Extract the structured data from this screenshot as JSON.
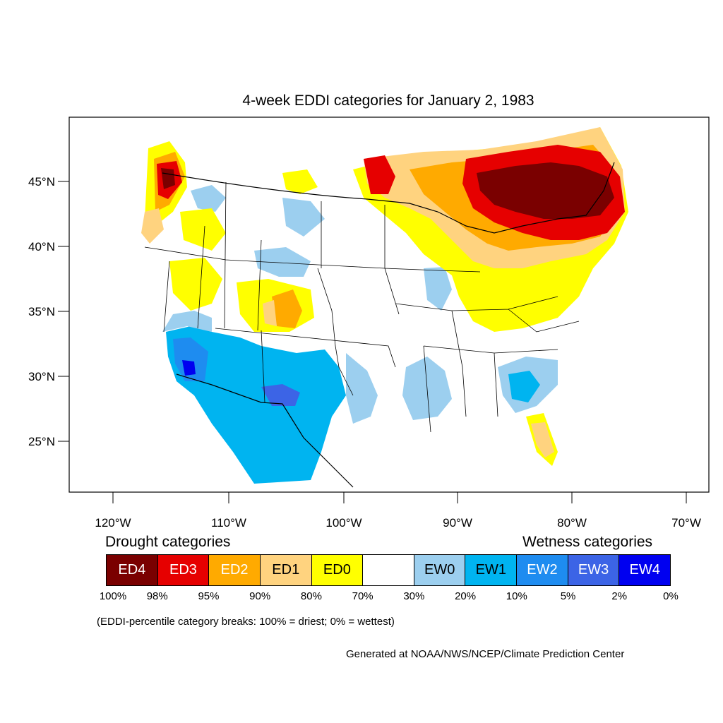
{
  "title": "4-week EDDI categories for January 2, 1983",
  "axes": {
    "y_ticks": [
      "45°N",
      "40°N",
      "35°N",
      "30°N",
      "25°N"
    ],
    "x_ticks": [
      "120°W",
      "110°W",
      "100°W",
      "90°W",
      "80°W",
      "70°W"
    ]
  },
  "legend": {
    "drought_heading": "Drought categories",
    "wetness_heading": "Wetness categories",
    "categories": [
      {
        "label": "ED4",
        "color": "#7a0000",
        "text_color": "#ffffff"
      },
      {
        "label": "ED3",
        "color": "#e60000",
        "text_color": "#ffffff"
      },
      {
        "label": "ED2",
        "color": "#ffaa00",
        "text_color": "#ffffff"
      },
      {
        "label": "ED1",
        "color": "#ffd37f",
        "text_color": "#000000"
      },
      {
        "label": "ED0",
        "color": "#ffff00",
        "text_color": "#000000"
      },
      {
        "label": "",
        "color": "#ffffff",
        "text_color": "#000000"
      },
      {
        "label": "EW0",
        "color": "#9ccfef",
        "text_color": "#000000"
      },
      {
        "label": "EW1",
        "color": "#00b4f0",
        "text_color": "#000000"
      },
      {
        "label": "EW2",
        "color": "#1e8cf0",
        "text_color": "#ffffff"
      },
      {
        "label": "EW3",
        "color": "#3c64e6",
        "text_color": "#ffffff"
      },
      {
        "label": "EW4",
        "color": "#0000f0",
        "text_color": "#ffffff"
      }
    ],
    "breaks": [
      "100%",
      "98%",
      "95%",
      "90%",
      "80%",
      "70%",
      "30%",
      "20%",
      "10%",
      "5%",
      "2%",
      "0%"
    ],
    "note": "(EDDI-percentile category breaks: 100% = driest; 0% = wettest)"
  },
  "credit": "Generated at NOAA/NWS/NCEP/Climate Prediction Center"
}
